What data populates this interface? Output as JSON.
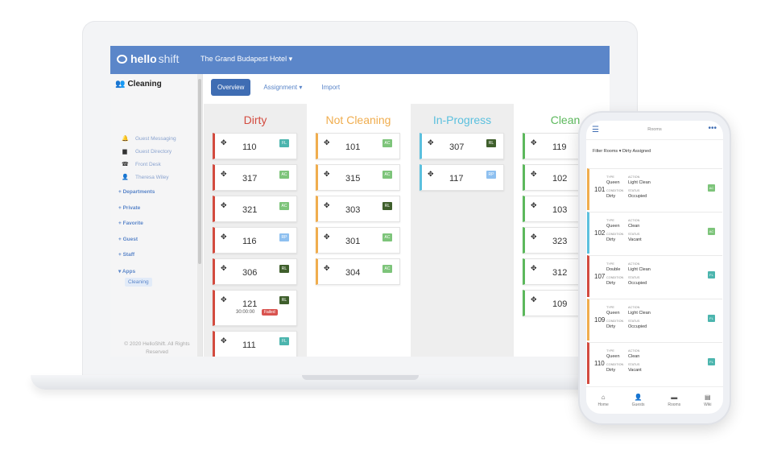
{
  "app": {
    "logo_bold": "hello",
    "logo_light": "shift",
    "hotel": "The Grand Budapest Hotel ▾"
  },
  "sidebar": {
    "title": "Cleaning",
    "items": [
      {
        "label": "Guest Messaging",
        "icon": "bell-icon"
      },
      {
        "label": "Guest Directory",
        "icon": "folder-icon"
      },
      {
        "label": "Front Desk",
        "icon": "desk-icon"
      },
      {
        "label": "Theresa Wiley",
        "icon": "user-icon"
      }
    ],
    "groups": [
      "+ Departments",
      "+ Private",
      "+ Favorite",
      "+ Guest",
      "+ Staff",
      "▾ Apps"
    ],
    "active": "Cleaning",
    "footer": "© 2020 HelloShift. All Rights Reserved"
  },
  "tabs": [
    {
      "label": "Overview"
    },
    {
      "label": "Assignment ▾"
    },
    {
      "label": "Import"
    }
  ],
  "columns": [
    {
      "title": "Dirty",
      "color": "#d34b3f",
      "cards": [
        {
          "num": "110",
          "tag": "FL",
          "tag_color": "#4cb5ae"
        },
        {
          "num": "317",
          "tag": "AC",
          "tag_color": "#7dc47a"
        },
        {
          "num": "321",
          "tag": "AC",
          "tag_color": "#7dc47a"
        },
        {
          "num": "116",
          "tag": "RP",
          "tag_color": "#8ec0f0"
        },
        {
          "num": "306",
          "tag": "RL",
          "tag_color": "#3f5f2c"
        },
        {
          "num": "121",
          "tag": "RL",
          "tag_color": "#3f5f2c",
          "sub": "30:00:00",
          "badge": "Failed"
        },
        {
          "num": "111",
          "tag": "FL",
          "tag_color": "#4cb5ae"
        }
      ]
    },
    {
      "title": "Not Cleaning",
      "color": "#f0ad4e",
      "cards": [
        {
          "num": "101",
          "tag": "AC",
          "tag_color": "#7dc47a"
        },
        {
          "num": "315",
          "tag": "AC",
          "tag_color": "#7dc47a"
        },
        {
          "num": "303",
          "tag": "RL",
          "tag_color": "#3f5f2c"
        },
        {
          "num": "301",
          "tag": "AC",
          "tag_color": "#7dc47a"
        },
        {
          "num": "304",
          "tag": "AC",
          "tag_color": "#7dc47a"
        }
      ]
    },
    {
      "title": "In-Progress",
      "color": "#5bc0de",
      "cards": [
        {
          "num": "307",
          "tag": "RL",
          "tag_color": "#3f5f2c"
        },
        {
          "num": "117",
          "tag": "RP",
          "tag_color": "#8ec0f0"
        }
      ]
    },
    {
      "title": "Clean",
      "color": "#5cb85c",
      "cards": [
        {
          "num": "119",
          "tag": "",
          "tag_color": "#7dc47a"
        },
        {
          "num": "102",
          "tag": "",
          "tag_color": "#7dc47a"
        },
        {
          "num": "103",
          "tag": "",
          "tag_color": "#7dc47a"
        },
        {
          "num": "323",
          "tag": "",
          "tag_color": "#7dc47a"
        },
        {
          "num": "312",
          "tag": "",
          "tag_color": "#7dc47a"
        },
        {
          "num": "109",
          "tag": "",
          "tag_color": "#7dc47a"
        }
      ]
    }
  ],
  "phone": {
    "title": "Rooms",
    "filter": "Filter Rooms ▾ Dirty Assigned",
    "labels": {
      "type": "TYPE",
      "condition": "CONDITION",
      "action": "ACTION",
      "status": "STATUS"
    },
    "rooms": [
      {
        "num": "101",
        "type": "Queen",
        "condition": "Dirty",
        "action": "Light Clean",
        "status": "Occupied",
        "tag": "AC",
        "color": "#f0ad4e",
        "tag_color": "#7dc47a"
      },
      {
        "num": "102",
        "type": "Queen",
        "condition": "Dirty",
        "action": "Clean",
        "status": "Vacant",
        "tag": "AC",
        "color": "#5bc0de",
        "tag_color": "#7dc47a"
      },
      {
        "num": "107",
        "type": "Double",
        "condition": "Dirty",
        "action": "Light Clean",
        "status": "Occupied",
        "tag": "FL",
        "color": "#d34b3f",
        "tag_color": "#4cb5ae"
      },
      {
        "num": "109",
        "type": "Queen",
        "condition": "Dirty",
        "action": "Light Clean",
        "status": "Occupied",
        "tag": "FL",
        "color": "#f0ad4e",
        "tag_color": "#4cb5ae"
      },
      {
        "num": "110",
        "type": "Queen",
        "condition": "Dirty",
        "action": "Clean",
        "status": "Vacant",
        "tag": "FL",
        "color": "#d34b3f",
        "tag_color": "#4cb5ae"
      }
    ],
    "nav": [
      {
        "label": "Home",
        "icon": "home-icon"
      },
      {
        "label": "Guests",
        "icon": "user-icon"
      },
      {
        "label": "Rooms",
        "icon": "bed-icon"
      },
      {
        "label": "Wiki",
        "icon": "book-icon"
      }
    ]
  }
}
